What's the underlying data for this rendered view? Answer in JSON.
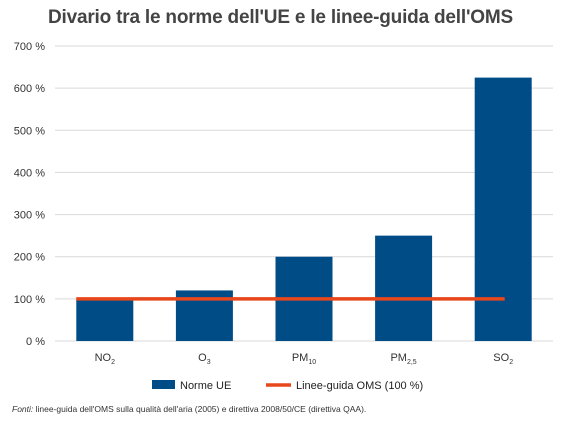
{
  "chart_data": {
    "type": "bar",
    "title": "Divario tra le norme dell'UE e le linee-guida dell'OMS",
    "categories": [
      {
        "base": "NO",
        "sub": "2"
      },
      {
        "base": "O",
        "sub": "3"
      },
      {
        "base": "PM",
        "sub": "10"
      },
      {
        "base": "PM",
        "sub": "2,5"
      },
      {
        "base": "SO",
        "sub": "2"
      }
    ],
    "series": [
      {
        "name": "Norme UE",
        "type": "bar",
        "color": "#004C86",
        "values": [
          100,
          120,
          200,
          250,
          625
        ]
      },
      {
        "name": "Linee-guida OMS (100 %)",
        "type": "line",
        "color": "#E8461B",
        "values": [
          100,
          100,
          100,
          100,
          100
        ]
      }
    ],
    "yticks": [
      "0 %",
      "100 %",
      "200 %",
      "300 %",
      "400 %",
      "500 %",
      "600 %",
      "700 %"
    ],
    "ylim": [
      0,
      700
    ],
    "ystep": 100,
    "grid": true,
    "legend_position": "bottom"
  },
  "source": {
    "label": "Fonti:",
    "text": " linee-guida dell'OMS sulla qualità dell'aria (2005) e direttiva 2008/50/CE (direttiva QAA)."
  }
}
